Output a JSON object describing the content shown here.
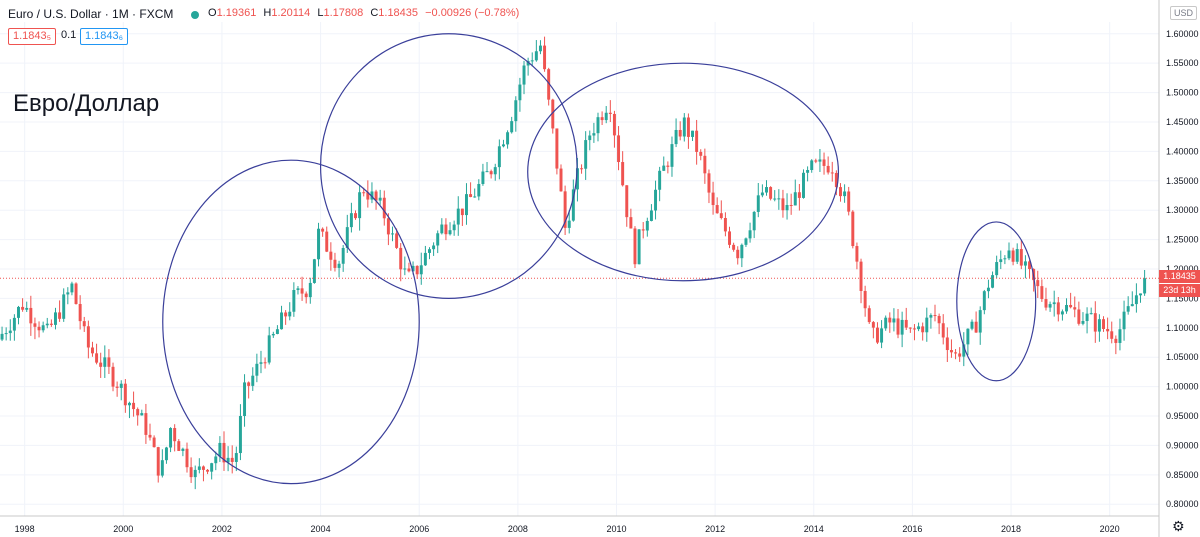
{
  "header": {
    "title": "Euro / U.S. Dollar · 1M · FXCM",
    "ohlc": {
      "o_key": "O",
      "o": "1.19361",
      "h_key": "H",
      "h": "1.20114",
      "l_key": "L",
      "l": "1.17808",
      "c_key": "C",
      "c": "1.18435",
      "change": "−0.00926 (−0.78%)"
    },
    "bid": "1.1843₅",
    "spread": "0.1",
    "ask": "1.1843₆"
  },
  "overlay_label": "Евро/Доллар",
  "currency": "USD",
  "last_price": "1.18435",
  "countdown": "23d 13h",
  "colors": {
    "up": "#26a69a",
    "down": "#ef5350",
    "circle": "#3a3f9a",
    "grid": "#f0f3fa",
    "axis_text": "#131722"
  },
  "chart_data": {
    "type": "candlestick",
    "x_axis": {
      "ticks": [
        "1998",
        "2000",
        "2002",
        "2004",
        "2006",
        "2008",
        "2010",
        "2012",
        "2014",
        "2016",
        "2018",
        "2020"
      ],
      "range": [
        1997.5,
        2021.0
      ]
    },
    "y_axis": {
      "ticks": [
        "0.80000",
        "0.85000",
        "0.90000",
        "0.95000",
        "1.00000",
        "1.05000",
        "1.10000",
        "1.15000",
        "1.20000",
        "1.25000",
        "1.30000",
        "1.35000",
        "1.40000",
        "1.45000",
        "1.50000",
        "1.55000",
        "1.60000"
      ],
      "range": [
        0.78,
        1.62
      ],
      "position": "right"
    },
    "grid": true,
    "series": [
      {
        "resolution": "1M",
        "path": [
          [
            1997.5,
            1.08
          ],
          [
            1998.0,
            1.14
          ],
          [
            1998.5,
            1.09
          ],
          [
            1999.0,
            1.17
          ],
          [
            1999.3,
            1.07
          ],
          [
            1999.9,
            1.01
          ],
          [
            2000.5,
            0.93
          ],
          [
            2000.8,
            0.85
          ],
          [
            2001.0,
            0.93
          ],
          [
            2001.5,
            0.85
          ],
          [
            2002.0,
            0.89
          ],
          [
            2002.3,
            0.87
          ],
          [
            2002.5,
            0.99
          ],
          [
            2003.0,
            1.07
          ],
          [
            2003.5,
            1.15
          ],
          [
            2003.8,
            1.17
          ],
          [
            2004.0,
            1.26
          ],
          [
            2004.4,
            1.21
          ],
          [
            2004.9,
            1.34
          ],
          [
            2005.3,
            1.3
          ],
          [
            2005.8,
            1.18
          ],
          [
            2006.0,
            1.2
          ],
          [
            2006.5,
            1.27
          ],
          [
            2007.0,
            1.31
          ],
          [
            2007.5,
            1.37
          ],
          [
            2007.9,
            1.46
          ],
          [
            2008.2,
            1.55
          ],
          [
            2008.5,
            1.58
          ],
          [
            2008.8,
            1.4
          ],
          [
            2009.0,
            1.27
          ],
          [
            2009.2,
            1.34
          ],
          [
            2009.5,
            1.43
          ],
          [
            2009.9,
            1.49
          ],
          [
            2010.4,
            1.22
          ],
          [
            2010.6,
            1.28
          ],
          [
            2011.0,
            1.37
          ],
          [
            2011.4,
            1.45
          ],
          [
            2011.7,
            1.4
          ],
          [
            2012.0,
            1.3
          ],
          [
            2012.5,
            1.23
          ],
          [
            2013.0,
            1.33
          ],
          [
            2013.5,
            1.3
          ],
          [
            2014.0,
            1.37
          ],
          [
            2014.4,
            1.38
          ],
          [
            2014.7,
            1.31
          ],
          [
            2015.0,
            1.18
          ],
          [
            2015.2,
            1.08
          ],
          [
            2015.6,
            1.11
          ],
          [
            2016.0,
            1.09
          ],
          [
            2016.5,
            1.12
          ],
          [
            2016.9,
            1.05
          ],
          [
            2017.3,
            1.1
          ],
          [
            2017.6,
            1.18
          ],
          [
            2018.0,
            1.24
          ],
          [
            2018.3,
            1.2
          ],
          [
            2018.7,
            1.15
          ],
          [
            2019.0,
            1.14
          ],
          [
            2019.5,
            1.12
          ],
          [
            2019.9,
            1.1
          ],
          [
            2020.2,
            1.09
          ],
          [
            2020.5,
            1.14
          ],
          [
            2020.7,
            1.18
          ]
        ],
        "last": 1.18435
      }
    ],
    "annotations": [
      {
        "shape": "ellipse",
        "x_range": [
          2000.8,
          2006.0
        ],
        "y_range": [
          0.835,
          1.385
        ]
      },
      {
        "shape": "ellipse",
        "x_range": [
          2004.0,
          2009.2
        ],
        "y_range": [
          1.15,
          1.6
        ]
      },
      {
        "shape": "ellipse",
        "x_range": [
          2008.2,
          2014.5
        ],
        "y_range": [
          1.18,
          1.55
        ]
      },
      {
        "shape": "ellipse",
        "x_range": [
          2016.9,
          2018.5
        ],
        "y_range": [
          1.01,
          1.28
        ]
      }
    ]
  }
}
